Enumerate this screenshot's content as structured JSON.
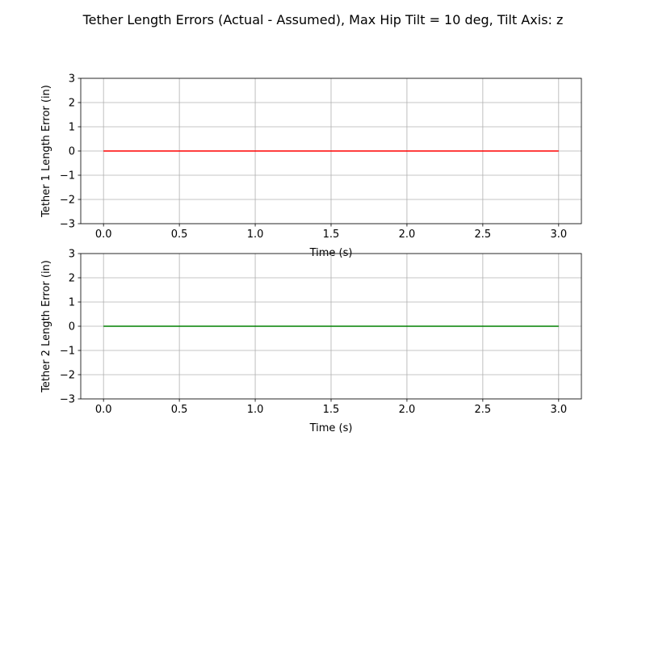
{
  "figure": {
    "title": "Tether Length Errors (Actual - Assumed), Max Hip Tilt = 10 deg, Tilt Axis: z"
  },
  "chart_data": [
    {
      "type": "line",
      "title": "",
      "xlabel": "Time (s)",
      "ylabel": "Tether 1 Length Error (in)",
      "xlim": [
        -0.15,
        3.15
      ],
      "ylim": [
        -3,
        3
      ],
      "xticks": [
        0.0,
        0.5,
        1.0,
        1.5,
        2.0,
        2.5,
        3.0
      ],
      "yticks": [
        -3,
        -2,
        -1,
        0,
        1,
        2,
        3
      ],
      "grid": true,
      "series": [
        {
          "color": "#ff0000",
          "x": [
            0.0,
            0.5,
            1.0,
            1.5,
            2.0,
            2.5,
            3.0
          ],
          "y": [
            0,
            0,
            0,
            0,
            0,
            0,
            0
          ]
        }
      ]
    },
    {
      "type": "line",
      "title": "",
      "xlabel": "Time (s)",
      "ylabel": "Tether 2 Length Error (in)",
      "xlim": [
        -0.15,
        3.15
      ],
      "ylim": [
        -3,
        3
      ],
      "xticks": [
        0.0,
        0.5,
        1.0,
        1.5,
        2.0,
        2.5,
        3.0
      ],
      "yticks": [
        -3,
        -2,
        -1,
        0,
        1,
        2,
        3
      ],
      "grid": true,
      "series": [
        {
          "color": "#008000",
          "x": [
            0.0,
            0.5,
            1.0,
            1.5,
            2.0,
            2.5,
            3.0
          ],
          "y": [
            0,
            0,
            0,
            0,
            0,
            0,
            0
          ]
        }
      ]
    }
  ]
}
